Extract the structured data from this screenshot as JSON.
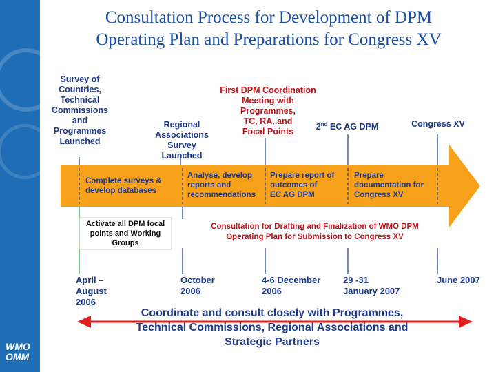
{
  "title_line1": "Consultation Process for Development of DPM",
  "title_line2": "Operating Plan and Preparations for Congress XV",
  "brand_line1": "WMO",
  "brand_line2": "OMM",
  "colors": {
    "sidebar": "#1f6db5",
    "band": "#f7a11a",
    "text_blue": "#1f3a8a",
    "text_red": "#c0141c",
    "arrow_red": "#e0201e"
  },
  "top_labels": {
    "survey": [
      "Survey of",
      "Countries,",
      "Technical",
      "Commissions",
      "and",
      "Programmes",
      "Launched"
    ],
    "regional": [
      "Regional",
      "Associations",
      "Survey",
      "Launched"
    ],
    "first_meeting": [
      "First DPM Coordination",
      "Meeting with",
      "Programmes,",
      "TC, RA, and",
      "Focal Points"
    ],
    "ec_ag": {
      "prefix": "2",
      "sup": "nd",
      "suffix": " EC AG DPM"
    },
    "congress": "Congress XV"
  },
  "band_segments": {
    "seg1": [
      "Complete surveys &",
      "develop databases"
    ],
    "seg2": [
      "Analyse, develop",
      "reports and",
      "recommendations"
    ],
    "seg3": [
      "Prepare report of",
      "outcomes of",
      "EC AG DPM"
    ],
    "seg4": [
      "Prepare",
      "documentation for",
      "Congress XV"
    ]
  },
  "below_labels": {
    "activate": [
      "Activate all DPM focal",
      "points and Working",
      "Groups"
    ],
    "consultation": [
      "Consultation for Drafting and Finalization of WMO DPM",
      "Operating Plan for Submission to Congress XV"
    ]
  },
  "dates": {
    "d1": [
      "April –",
      "August",
      "2006"
    ],
    "d2": [
      "October",
      "2006"
    ],
    "d3": [
      "4-6 December",
      "2006"
    ],
    "d4": [
      "29 -31",
      "January 2007"
    ],
    "d5": [
      "June 2007"
    ]
  },
  "coordinate": [
    "Coordinate and consult closely with Programmes,",
    "Technical Commissions, Regional Associations and",
    "Strategic Partners"
  ]
}
